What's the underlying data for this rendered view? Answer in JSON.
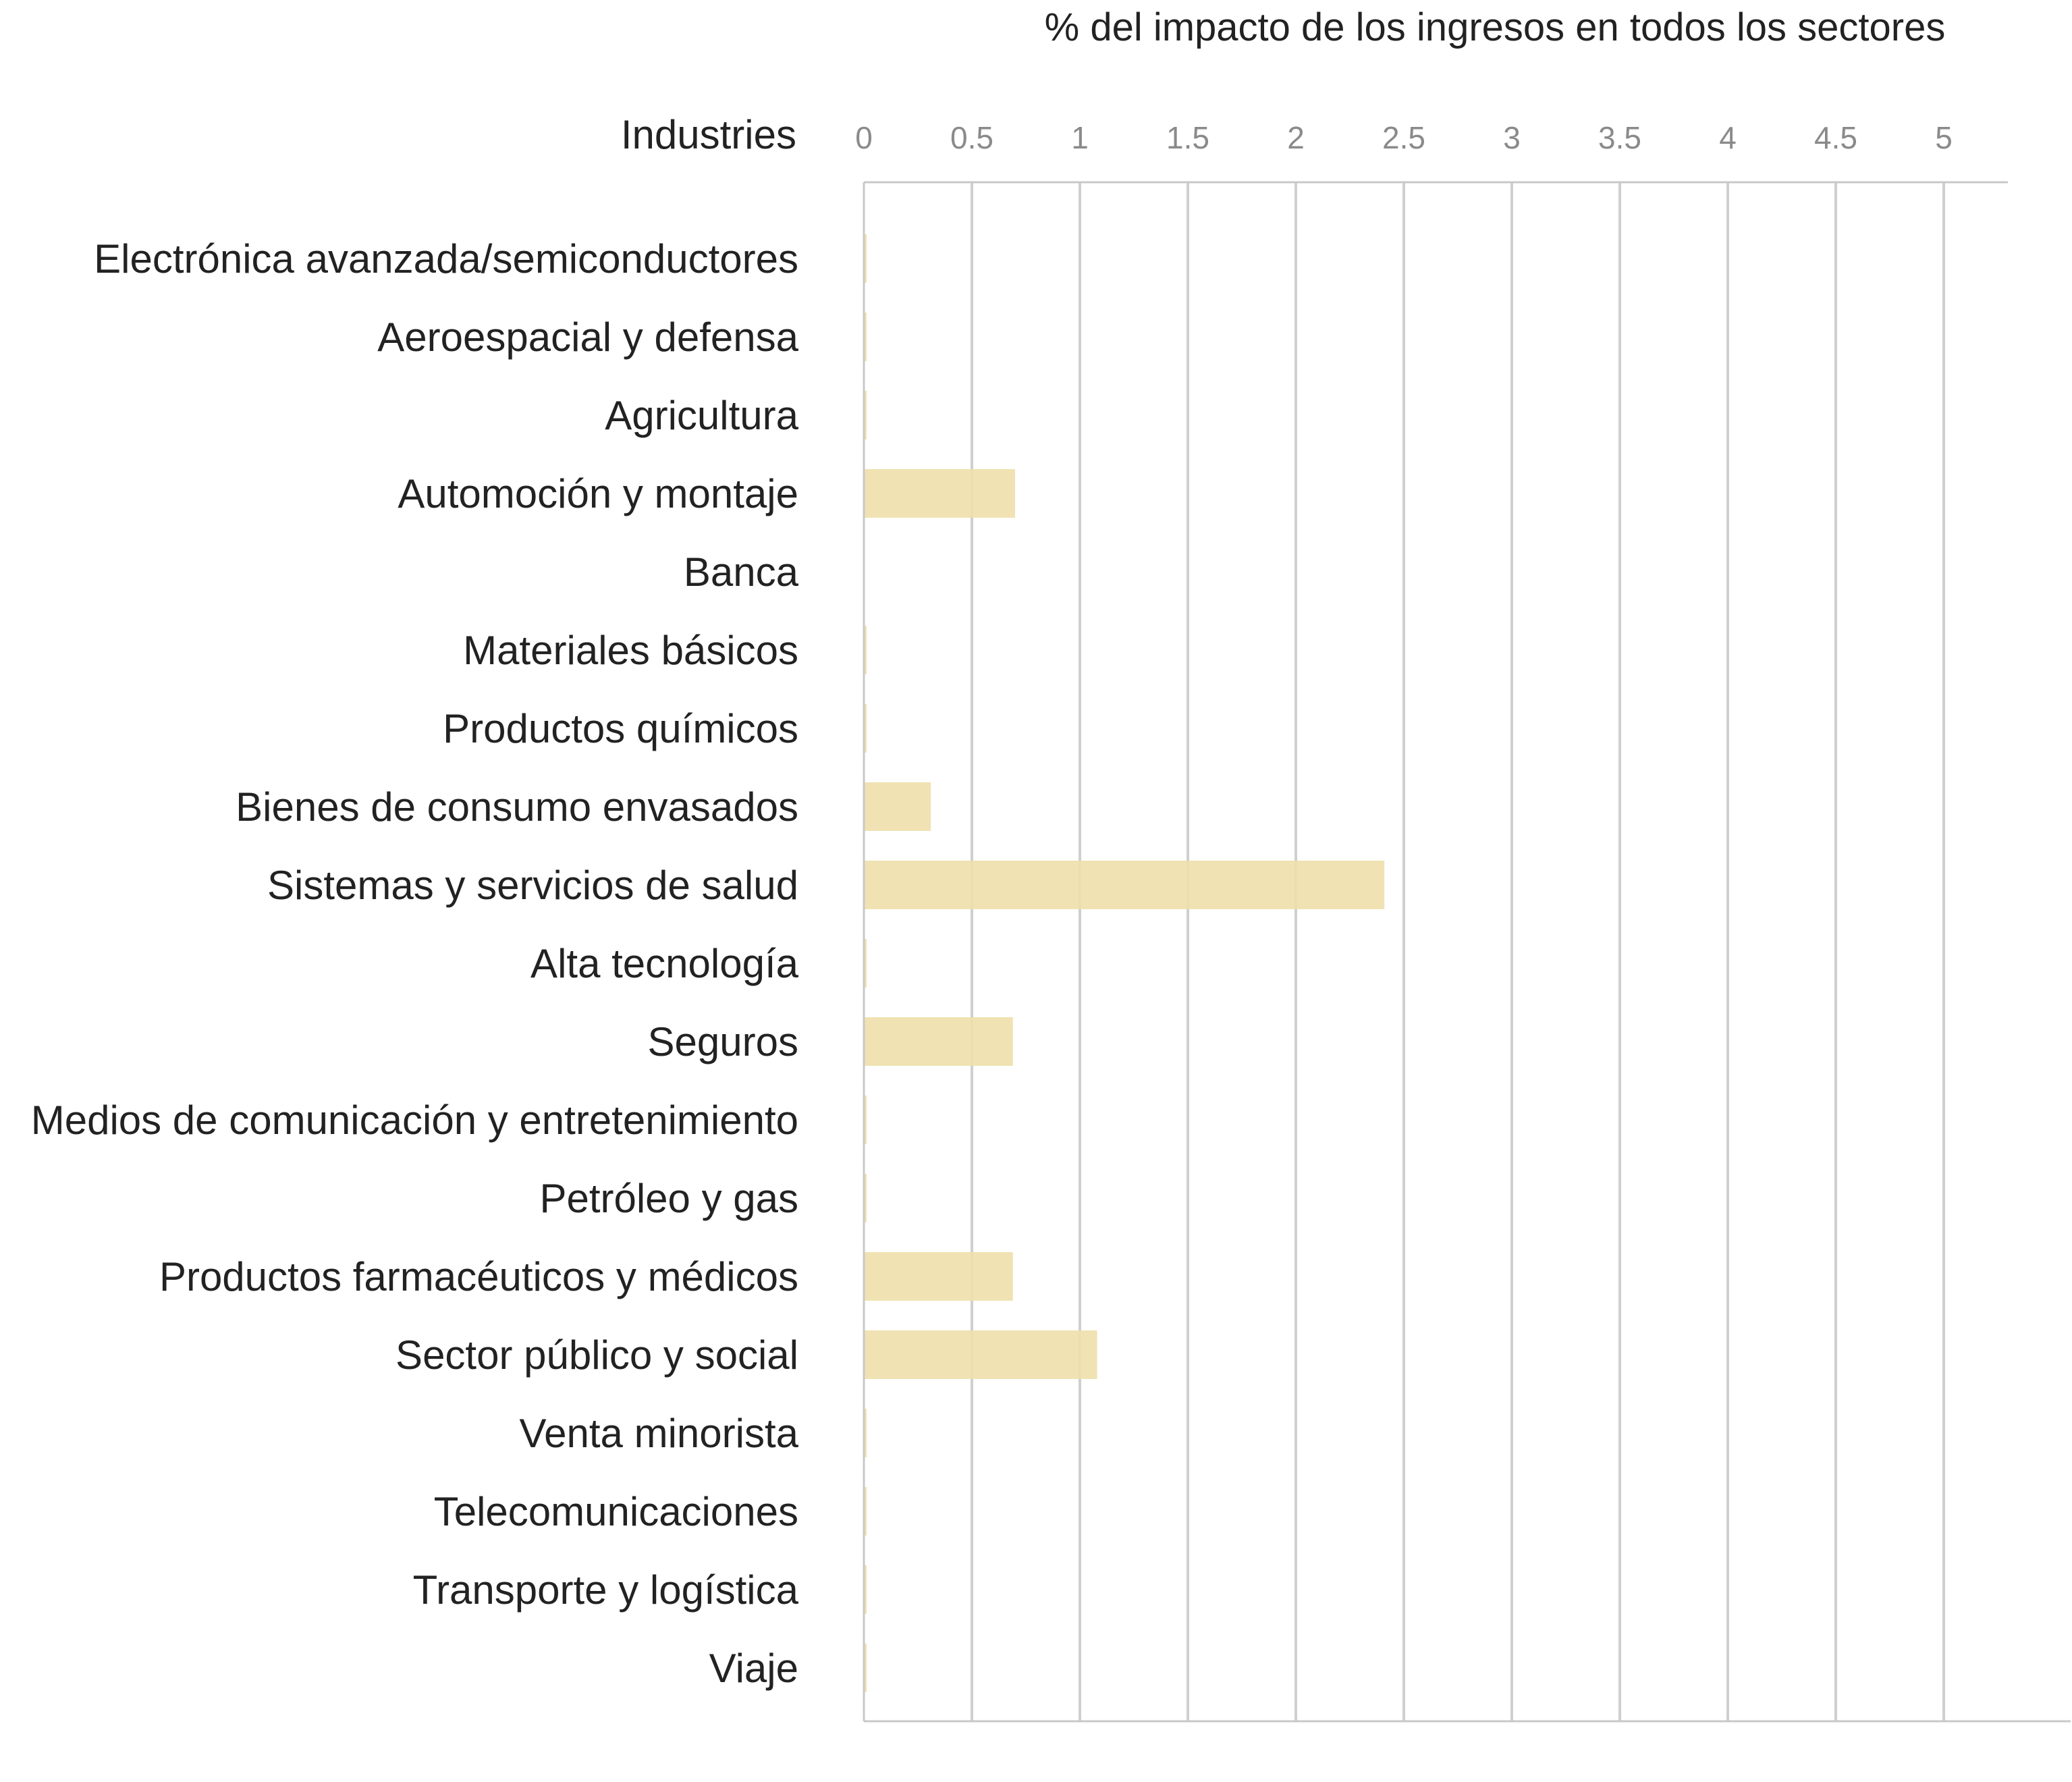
{
  "chart_data": {
    "type": "bar",
    "orientation": "horizontal",
    "title": "% del impacto de los ingresos en todos los sectores",
    "ylabel": "Industries",
    "xlabel": "",
    "xlim": [
      0,
      5.3
    ],
    "xticks": [
      0,
      0.5,
      1,
      1.5,
      2,
      2.5,
      3,
      3.5,
      4,
      4.5,
      5
    ],
    "xtick_labels": [
      "0",
      "0.5",
      "1",
      "1.5",
      "2",
      "2.5",
      "3",
      "3.5",
      "4",
      "4.5",
      "5"
    ],
    "grid": true,
    "bar_color": "#efdfad",
    "categories": [
      "Electrónica avanzada/semiconductores",
      "Aeroespacial y defensa",
      "Agricultura",
      "Automoción y montaje",
      "Banca",
      "Materiales básicos",
      "Productos químicos",
      "Bienes de consumo envasados",
      "Sistemas y servicios de salud",
      "Alta tecnología",
      "Seguros",
      "Medios de comunicación y entretenimiento",
      "Petróleo y gas",
      "Productos farmacéuticos y médicos",
      "Sector público y social",
      "Venta minorista",
      "Telecomunicaciones",
      "Transporte y logística",
      "Viaje"
    ],
    "values": [
      0.01,
      0.01,
      0.01,
      0.7,
      0,
      0.01,
      0.01,
      0.31,
      2.41,
      0.01,
      0.69,
      0.01,
      0.01,
      0.69,
      1.08,
      0.01,
      0.01,
      0.01,
      0.01
    ]
  }
}
